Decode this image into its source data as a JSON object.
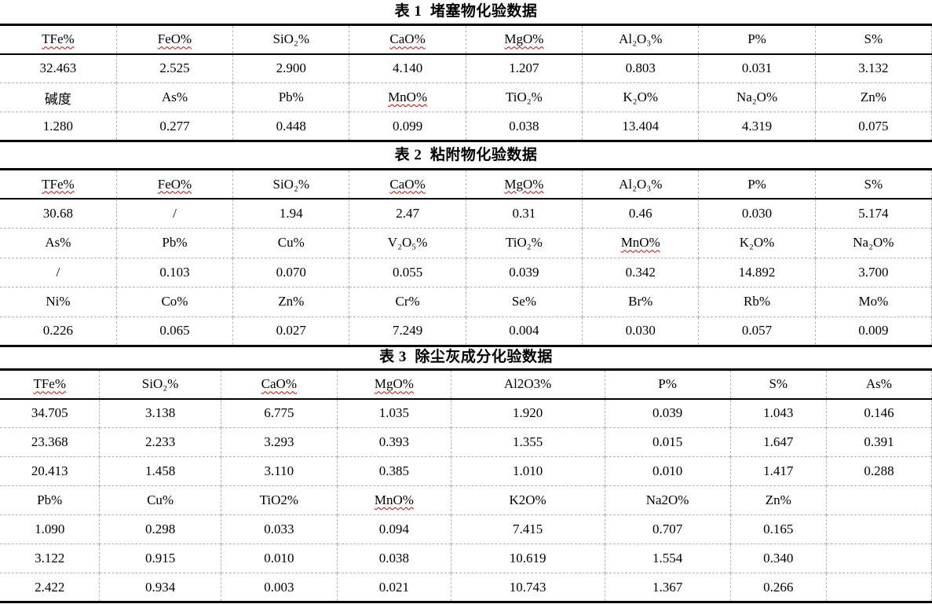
{
  "document": {
    "background": "#ffffff",
    "text_color": "#000000"
  },
  "colors": {
    "heavy_border": "#000000",
    "header_rule": "#000000",
    "grid_dashed": "#b3b3b3",
    "squiggle_red": "#cc0000"
  },
  "tables": [
    {
      "id": "table-1",
      "title": "表 1  堵塞物化验数据",
      "column_widths_pct": [
        12.5,
        12.5,
        12.5,
        12.5,
        12.5,
        12.5,
        12.5,
        12.5
      ],
      "rows": [
        {
          "kind": "header",
          "cells": [
            {
              "text": "TFe%",
              "squiggle": true
            },
            {
              "text": "FeO%",
              "squiggle": true
            },
            {
              "text": "SiO₂%"
            },
            {
              "text": "CaO%",
              "squiggle": true
            },
            {
              "text": "MgO%",
              "squiggle": true
            },
            {
              "text": "Al₂O₃%"
            },
            {
              "text": "P%"
            },
            {
              "text": "S%"
            }
          ]
        },
        {
          "kind": "data",
          "cells": [
            {
              "text": "32.463"
            },
            {
              "text": "2.525"
            },
            {
              "text": "2.900"
            },
            {
              "text": "4.140"
            },
            {
              "text": "1.207"
            },
            {
              "text": "0.803"
            },
            {
              "text": "0.031"
            },
            {
              "text": "3.132"
            }
          ]
        },
        {
          "kind": "header",
          "cells": [
            {
              "text": "碱度"
            },
            {
              "text": "As%"
            },
            {
              "text": "Pb%"
            },
            {
              "text": "MnO%",
              "squiggle": true
            },
            {
              "text": "TiO₂%"
            },
            {
              "text": "K₂O%"
            },
            {
              "text": "Na₂O%"
            },
            {
              "text": "Zn%"
            }
          ]
        },
        {
          "kind": "data",
          "cells": [
            {
              "text": "1.280"
            },
            {
              "text": "0.277"
            },
            {
              "text": "0.448"
            },
            {
              "text": "0.099"
            },
            {
              "text": "0.038"
            },
            {
              "text": "13.404"
            },
            {
              "text": "4.319"
            },
            {
              "text": "0.075"
            }
          ]
        }
      ]
    },
    {
      "id": "table-2",
      "title": "表 2  粘附物化验数据",
      "column_widths_pct": [
        12.5,
        12.5,
        12.5,
        12.5,
        12.5,
        12.5,
        12.5,
        12.5
      ],
      "rows": [
        {
          "kind": "header",
          "cells": [
            {
              "text": "TFe%",
              "squiggle": true
            },
            {
              "text": "FeO%",
              "squiggle": true
            },
            {
              "text": "SiO₂%"
            },
            {
              "text": "CaO%",
              "squiggle": true
            },
            {
              "text": "MgO%",
              "squiggle": true
            },
            {
              "text": "Al₂O₃%"
            },
            {
              "text": "P%"
            },
            {
              "text": "S%"
            }
          ]
        },
        {
          "kind": "data",
          "cells": [
            {
              "text": "30.68"
            },
            {
              "text": "/"
            },
            {
              "text": "1.94"
            },
            {
              "text": "2.47"
            },
            {
              "text": "0.31"
            },
            {
              "text": "0.46"
            },
            {
              "text": "0.030"
            },
            {
              "text": "5.174"
            }
          ]
        },
        {
          "kind": "header",
          "cells": [
            {
              "text": "As%"
            },
            {
              "text": "Pb%"
            },
            {
              "text": "Cu%"
            },
            {
              "text": "V₂O₅%"
            },
            {
              "text": "TiO₂%"
            },
            {
              "text": "MnO%",
              "squiggle": true
            },
            {
              "text": "K₂O%"
            },
            {
              "text": "Na₂O%"
            }
          ]
        },
        {
          "kind": "data",
          "cells": [
            {
              "text": "/"
            },
            {
              "text": "0.103"
            },
            {
              "text": "0.070"
            },
            {
              "text": "0.055"
            },
            {
              "text": "0.039"
            },
            {
              "text": "0.342"
            },
            {
              "text": "14.892"
            },
            {
              "text": "3.700"
            }
          ]
        },
        {
          "kind": "header",
          "cells": [
            {
              "text": "Ni%"
            },
            {
              "text": "Co%"
            },
            {
              "text": "Zn%"
            },
            {
              "text": "Cr%"
            },
            {
              "text": "Se%"
            },
            {
              "text": "Br%"
            },
            {
              "text": "Rb%"
            },
            {
              "text": "Mo%"
            }
          ]
        },
        {
          "kind": "data",
          "cells": [
            {
              "text": "0.226"
            },
            {
              "text": "0.065"
            },
            {
              "text": "0.027"
            },
            {
              "text": "7.249"
            },
            {
              "text": "0.004"
            },
            {
              "text": "0.030"
            },
            {
              "text": "0.057"
            },
            {
              "text": "0.009"
            }
          ]
        }
      ]
    },
    {
      "id": "table-3",
      "title": "表 3  除尘灰成分化验数据",
      "column_widths_pct": [
        10.7,
        13.0,
        12.5,
        12.2,
        16.5,
        13.5,
        10.3,
        11.3
      ],
      "rows": [
        {
          "kind": "header",
          "cells": [
            {
              "text": "TFe%",
              "squiggle": true
            },
            {
              "text": "SiO₂%"
            },
            {
              "text": "CaO%",
              "squiggle": true
            },
            {
              "text": "MgO%",
              "squiggle": true
            },
            {
              "text": "Al2O3%"
            },
            {
              "text": "P%"
            },
            {
              "text": "S%"
            },
            {
              "text": "As%"
            }
          ]
        },
        {
          "kind": "data",
          "cells": [
            {
              "text": "34.705"
            },
            {
              "text": "3.138"
            },
            {
              "text": "6.775"
            },
            {
              "text": "1.035"
            },
            {
              "text": "1.920"
            },
            {
              "text": "0.039"
            },
            {
              "text": "1.043"
            },
            {
              "text": "0.146"
            }
          ]
        },
        {
          "kind": "data",
          "cells": [
            {
              "text": "23.368"
            },
            {
              "text": "2.233"
            },
            {
              "text": "3.293"
            },
            {
              "text": "0.393"
            },
            {
              "text": "1.355"
            },
            {
              "text": "0.015"
            },
            {
              "text": "1.647"
            },
            {
              "text": "0.391"
            }
          ]
        },
        {
          "kind": "data",
          "cells": [
            {
              "text": "20.413"
            },
            {
              "text": "1.458"
            },
            {
              "text": "3.110"
            },
            {
              "text": "0.385"
            },
            {
              "text": "1.010"
            },
            {
              "text": "0.010"
            },
            {
              "text": "1.417"
            },
            {
              "text": "0.288"
            }
          ]
        },
        {
          "kind": "header",
          "cells": [
            {
              "text": "Pb%"
            },
            {
              "text": "Cu%"
            },
            {
              "text": "TiO2%"
            },
            {
              "text": "MnO%",
              "squiggle": true
            },
            {
              "text": "K2O%"
            },
            {
              "text": "Na2O%"
            },
            {
              "text": "Zn%"
            },
            {
              "text": ""
            }
          ]
        },
        {
          "kind": "data",
          "cells": [
            {
              "text": "1.090"
            },
            {
              "text": "0.298"
            },
            {
              "text": "0.033"
            },
            {
              "text": "0.094"
            },
            {
              "text": "7.415"
            },
            {
              "text": "0.707"
            },
            {
              "text": "0.165"
            },
            {
              "text": ""
            }
          ]
        },
        {
          "kind": "data",
          "cells": [
            {
              "text": "3.122"
            },
            {
              "text": "0.915"
            },
            {
              "text": "0.010"
            },
            {
              "text": "0.038"
            },
            {
              "text": "10.619"
            },
            {
              "text": "1.554"
            },
            {
              "text": "0.340"
            },
            {
              "text": ""
            }
          ]
        },
        {
          "kind": "data",
          "cells": [
            {
              "text": "2.422"
            },
            {
              "text": "0.934"
            },
            {
              "text": "0.003"
            },
            {
              "text": "0.021"
            },
            {
              "text": "10.743"
            },
            {
              "text": "1.367"
            },
            {
              "text": "0.266"
            },
            {
              "text": ""
            }
          ]
        }
      ]
    }
  ]
}
